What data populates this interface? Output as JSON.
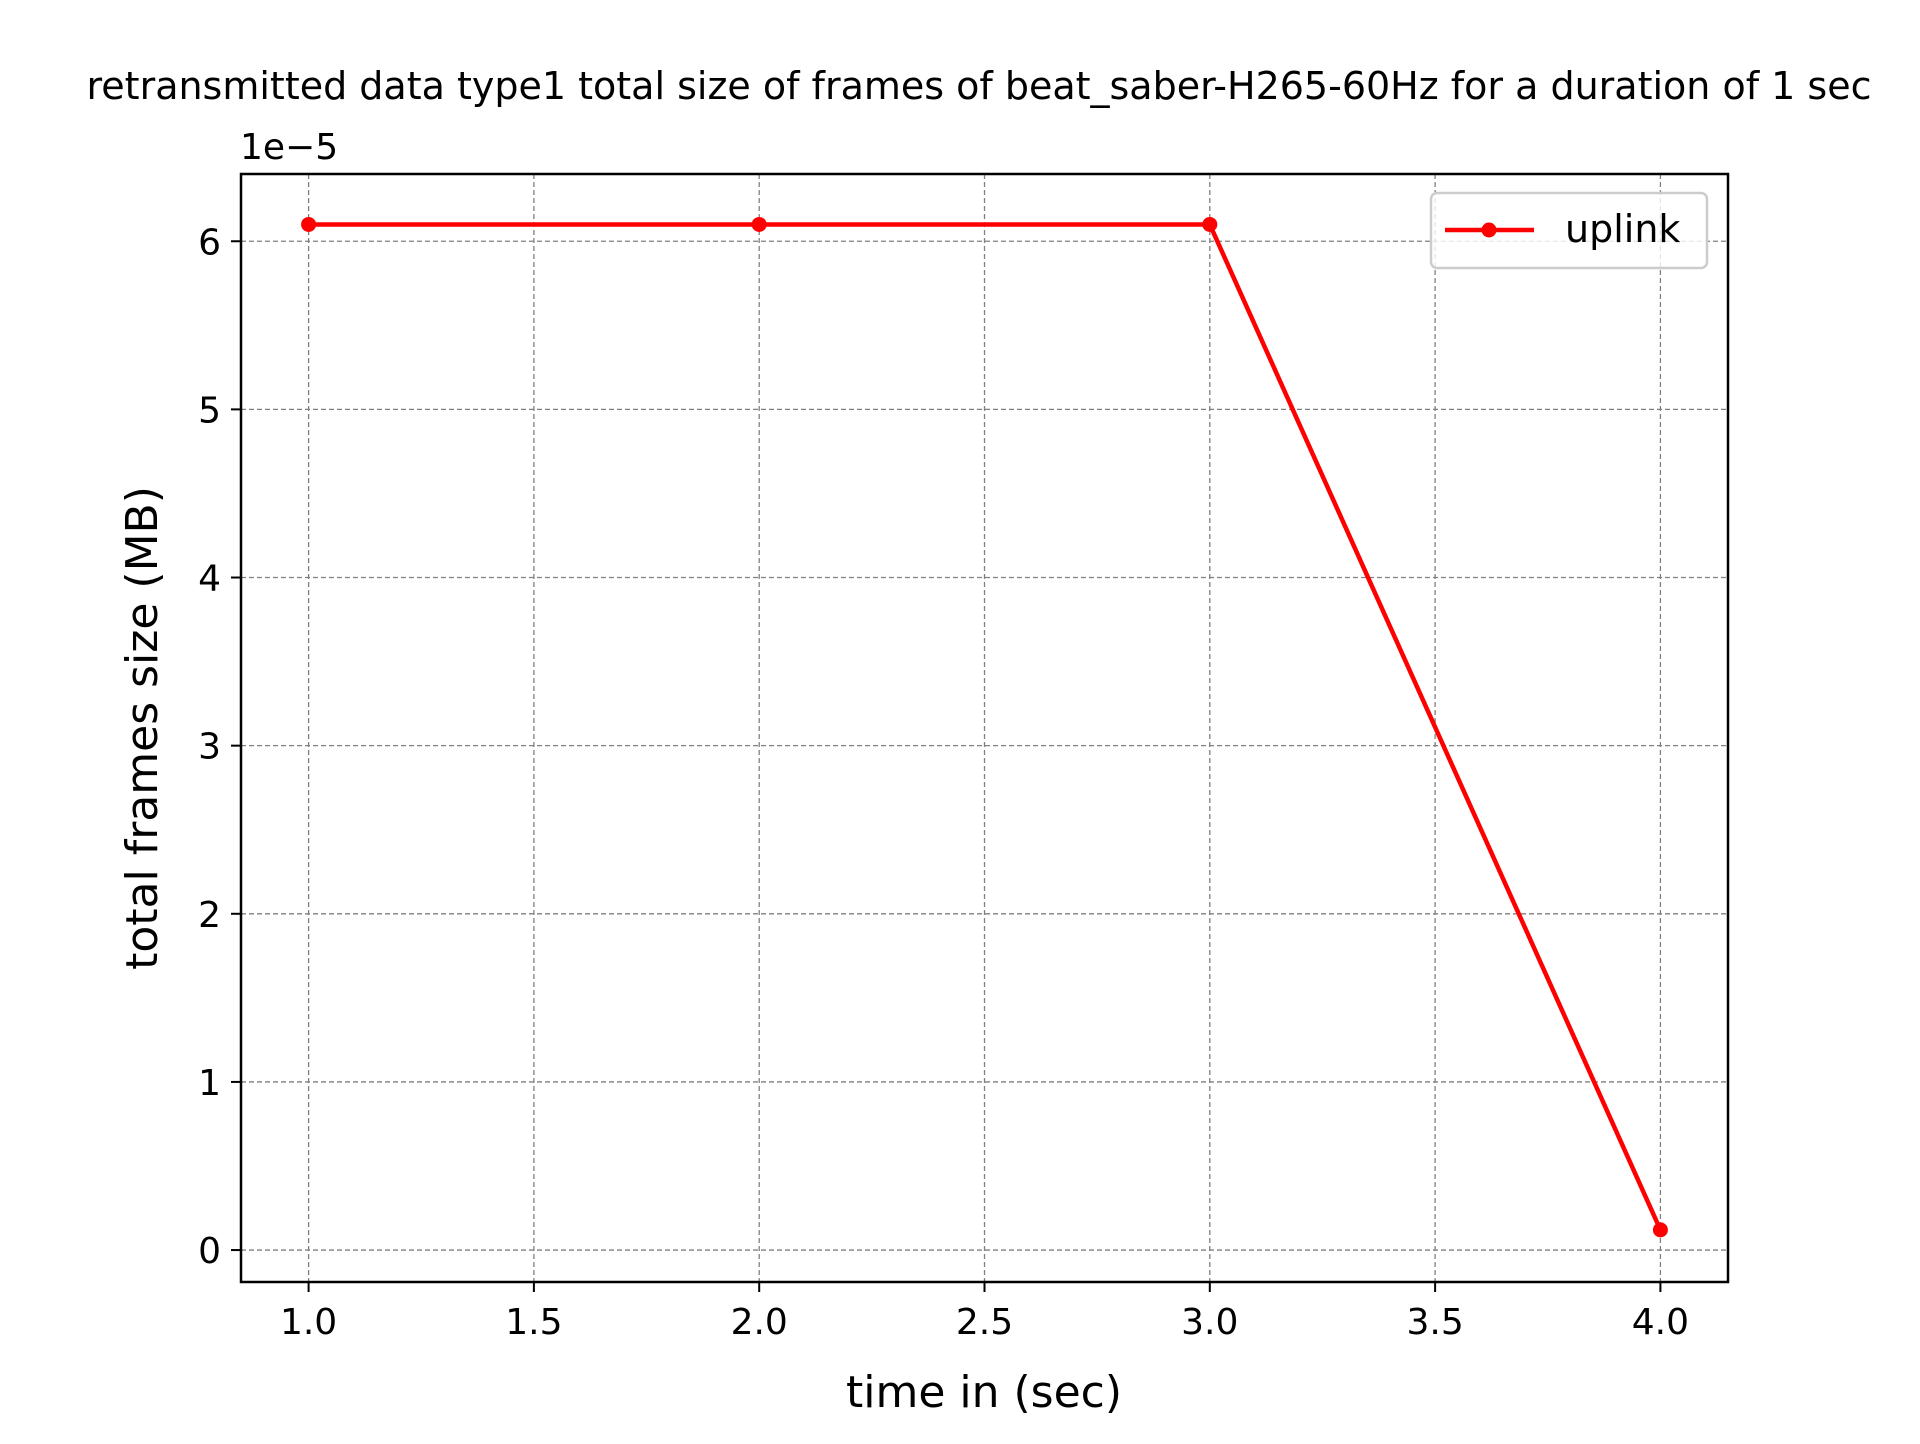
{
  "chart_data": {
    "type": "line",
    "title": "retransmitted data type1 total size of frames of beat_saber-H265-60Hz for a duration of 1 sec",
    "xlabel": "time in (sec)",
    "ylabel": "total frames size (MB)",
    "y_offset_text": "1e−5",
    "y_multiplier": 1e-05,
    "xlim": [
      0.85,
      4.15
    ],
    "ylim": [
      -0.19,
      6.4
    ],
    "xticks": [
      1.0,
      1.5,
      2.0,
      2.5,
      3.0,
      3.5,
      4.0
    ],
    "xtick_labels": [
      "1.0",
      "1.5",
      "2.0",
      "2.5",
      "3.0",
      "3.5",
      "4.0"
    ],
    "yticks": [
      0,
      1,
      2,
      3,
      4,
      5,
      6
    ],
    "ytick_labels": [
      "0",
      "1",
      "2",
      "3",
      "4",
      "5",
      "6"
    ],
    "grid": true,
    "legend_position": "top-right",
    "series": [
      {
        "name": "uplink",
        "color": "#ff0000",
        "marker": "circle",
        "x": [
          1.0,
          2.0,
          3.0,
          4.0
        ],
        "y": [
          6.1,
          6.1,
          6.1,
          0.12
        ]
      }
    ]
  }
}
